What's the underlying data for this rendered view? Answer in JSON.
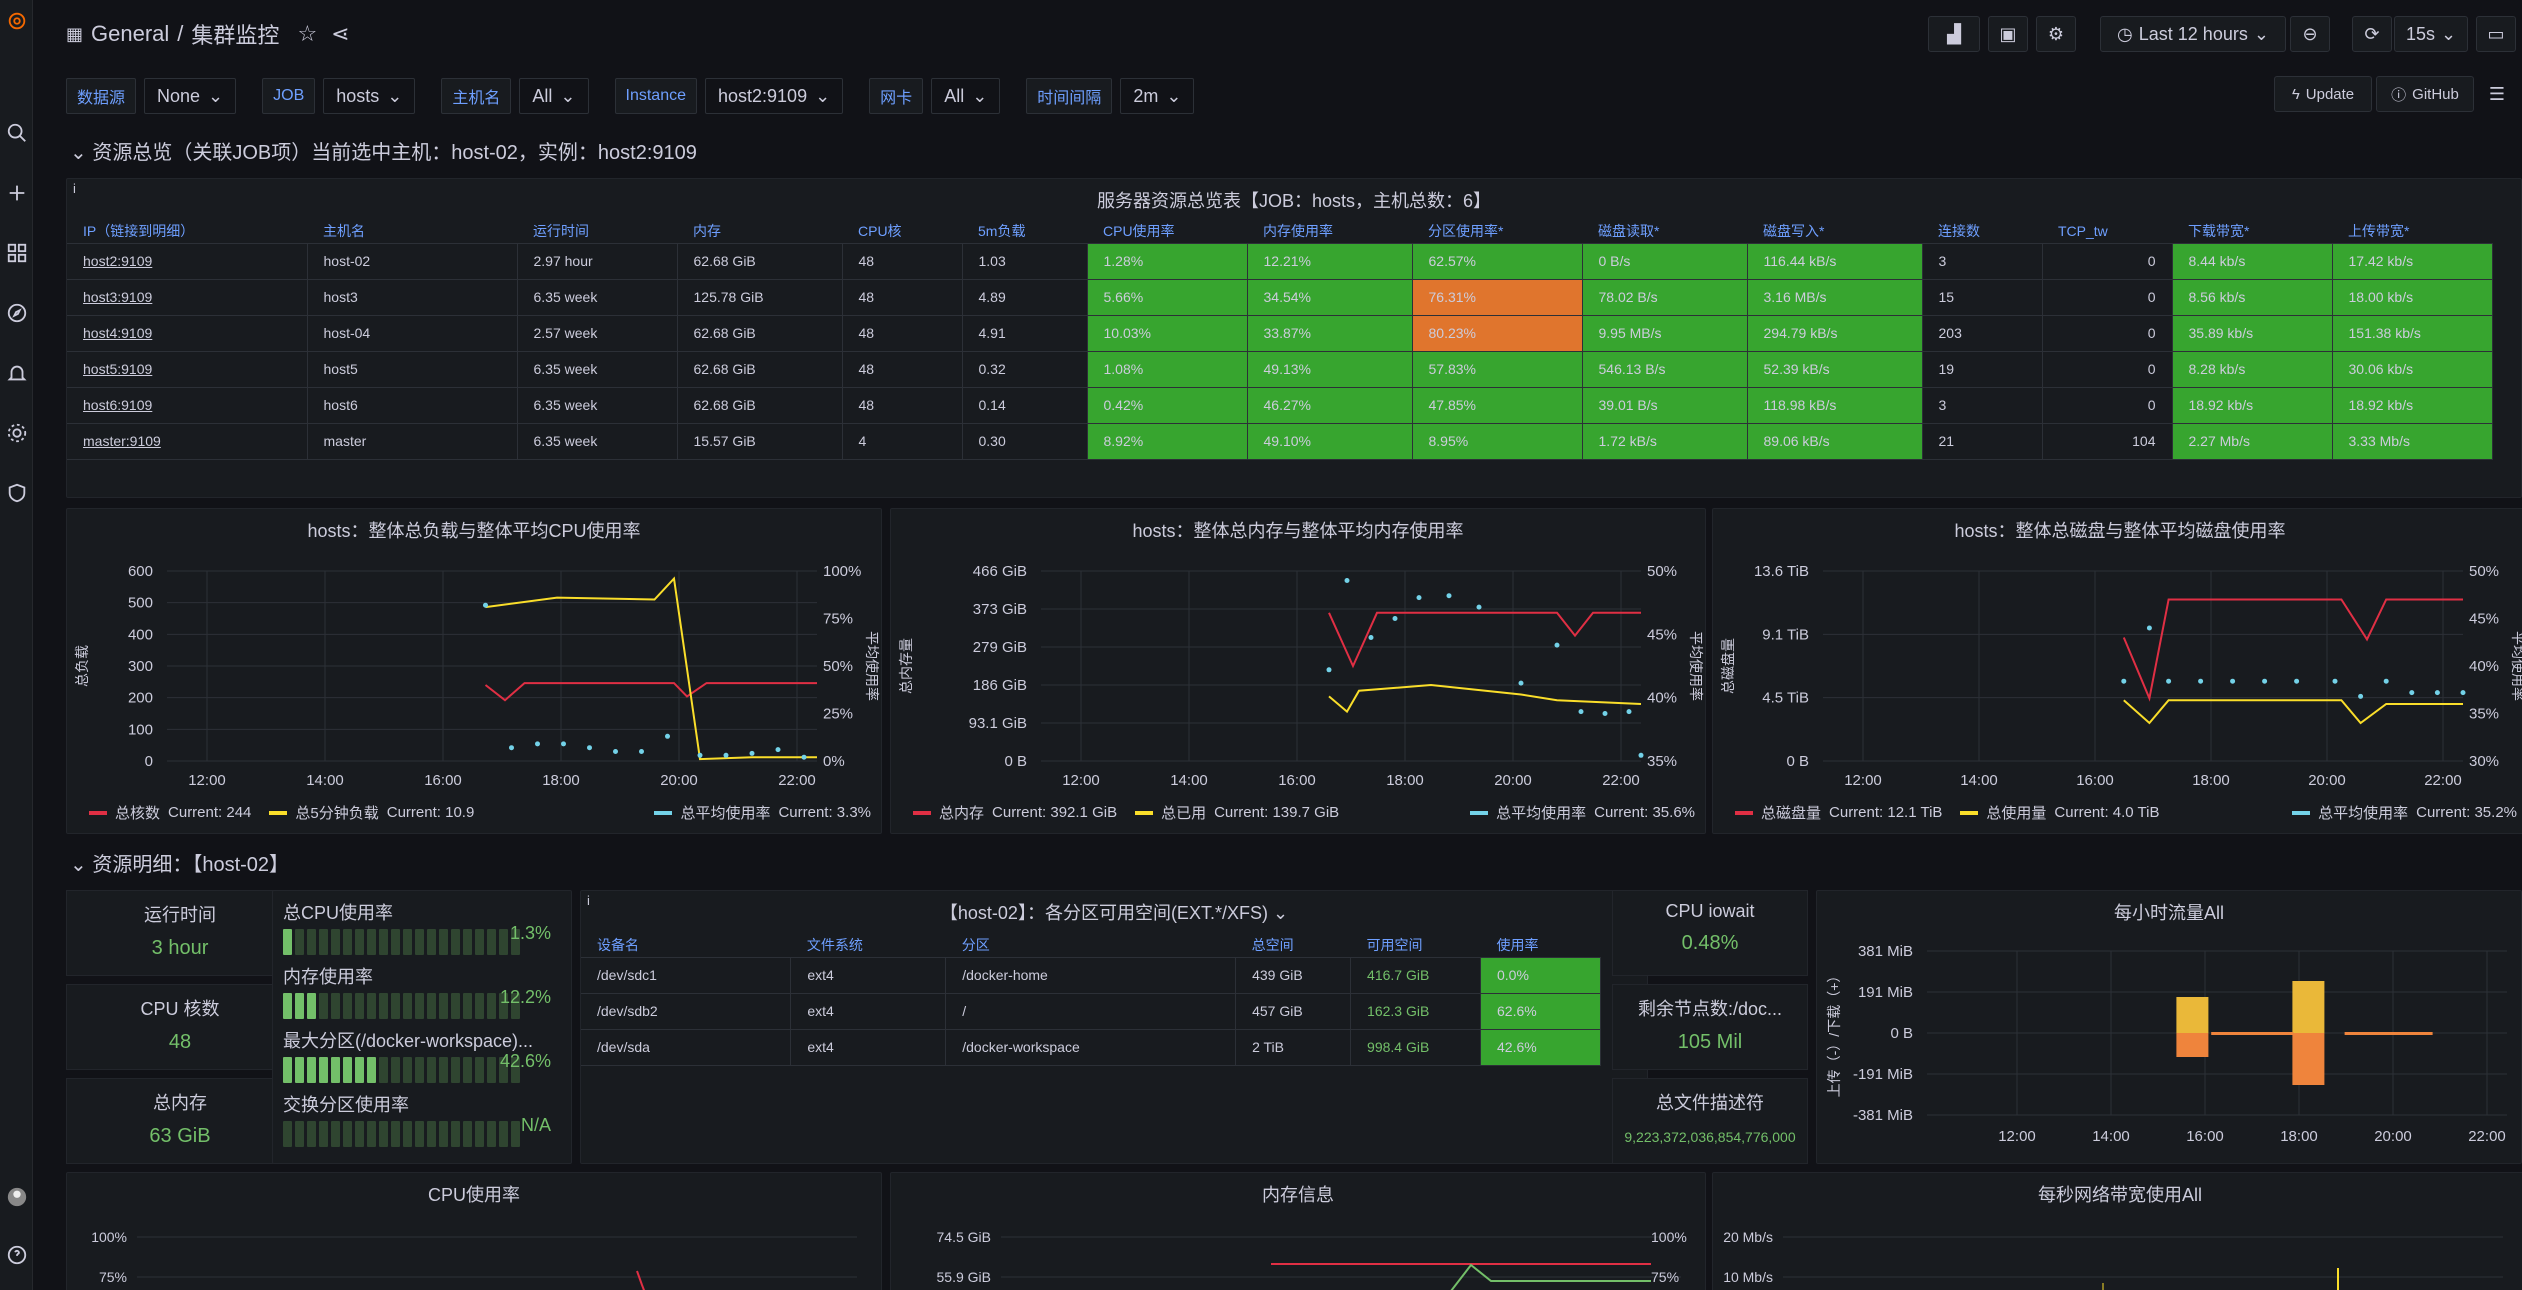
{
  "header": {
    "section": "General",
    "separator": "/",
    "title": "集群监控",
    "time_range": "Last 12 hours",
    "refresh": "15s",
    "update": "Update",
    "github": "GitHub"
  },
  "vars": [
    {
      "label": "数据源",
      "value": "None"
    },
    {
      "label": "JOB",
      "value": "hosts"
    },
    {
      "label": "主机名",
      "value": "All"
    },
    {
      "label": "Instance",
      "value": "host2:9109"
    },
    {
      "label": "网卡",
      "value": "All"
    },
    {
      "label": "时间间隔",
      "value": "2m"
    }
  ],
  "row1": {
    "title": "资源总览（关联JOB项）当前选中主机：host-02，实例：host2:9109"
  },
  "overview": {
    "title": "服务器资源总览表【JOB：hosts，主机总数：6】",
    "info": "i",
    "columns": [
      "IP（链接到明细）",
      "主机名",
      "运行时间",
      "内存",
      "CPU核",
      "5m负载",
      "CPU使用率",
      "内存使用率",
      "分区使用率*",
      "磁盘读取*",
      "磁盘写入*",
      "连接数",
      "TCP_tw",
      "下载带宽*",
      "上传带宽*"
    ],
    "rows": [
      [
        "host2:9109",
        "host-02",
        "2.97 hour",
        "62.68 GiB",
        "48",
        "1.03",
        "1.28%",
        "12.21%",
        "62.57%",
        "0 B/s",
        "116.44 kB/s",
        "3",
        "0",
        "8.44 kb/s",
        "17.42 kb/s"
      ],
      [
        "host3:9109",
        "host3",
        "6.35 week",
        "125.78 GiB",
        "48",
        "4.89",
        "5.66%",
        "34.54%",
        "76.31%",
        "78.02 B/s",
        "3.16 MB/s",
        "15",
        "0",
        "8.56 kb/s",
        "18.00 kb/s"
      ],
      [
        "host4:9109",
        "host-04",
        "2.57 week",
        "62.68 GiB",
        "48",
        "4.91",
        "10.03%",
        "33.87%",
        "80.23%",
        "9.95 MB/s",
        "294.79 kB/s",
        "203",
        "0",
        "35.89 kb/s",
        "151.38 kb/s"
      ],
      [
        "host5:9109",
        "host5",
        "6.35 week",
        "62.68 GiB",
        "48",
        "0.32",
        "1.08%",
        "49.13%",
        "57.83%",
        "546.13 B/s",
        "52.39 kB/s",
        "19",
        "0",
        "8.28 kb/s",
        "30.06 kb/s"
      ],
      [
        "host6:9109",
        "host6",
        "6.35 week",
        "62.68 GiB",
        "48",
        "0.14",
        "0.42%",
        "46.27%",
        "47.85%",
        "39.01 B/s",
        "118.98 kB/s",
        "3",
        "0",
        "18.92 kb/s",
        "18.92 kb/s"
      ],
      [
        "master:9109",
        "master",
        "6.35 week",
        "15.57 GiB",
        "4",
        "0.30",
        "8.92%",
        "49.10%",
        "8.95%",
        "1.72 kB/s",
        "89.06 kB/s",
        "21",
        "104",
        "2.27 Mb/s",
        "3.33 Mb/s"
      ]
    ]
  },
  "charts": [
    {
      "title": "hosts：整体总负载与整体平均CPU使用率",
      "yl": "总负载",
      "yr": "平均使用率",
      "yticks": [
        "600",
        "500",
        "400",
        "300",
        "200",
        "100",
        "0"
      ],
      "rticks": [
        "100%",
        "75%",
        "50%",
        "25%",
        "0%"
      ],
      "legend": [
        {
          "name": "总核数",
          "cur": "Current: 244",
          "color": "#e02f44"
        },
        {
          "name": "总5分钟负载",
          "cur": "Current: 10.9",
          "color": "#fade2a"
        }
      ],
      "legend_r": {
        "name": "总平均使用率",
        "cur": "Current: 3.3%",
        "color": "#73d2e8"
      }
    },
    {
      "title": "hosts：整体总内存与整体平均内存使用率",
      "yl": "总内存量",
      "yr": "平均使用率",
      "yticks": [
        "466 GiB",
        "373 GiB",
        "279 GiB",
        "186 GiB",
        "93.1 GiB",
        "0 B"
      ],
      "rticks": [
        "50%",
        "45%",
        "40%",
        "35%"
      ],
      "legend": [
        {
          "name": "总内存",
          "cur": "Current: 392.1 GiB",
          "color": "#e02f44"
        },
        {
          "name": "总已用",
          "cur": "Current: 139.7 GiB",
          "color": "#fade2a"
        }
      ],
      "legend_r": {
        "name": "总平均使用率",
        "cur": "Current: 35.6%",
        "color": "#73d2e8"
      }
    },
    {
      "title": "hosts：整体总磁盘与整体平均磁盘使用率",
      "yl": "总磁盘量",
      "yr": "平均使用率",
      "yticks": [
        "13.6 TiB",
        "9.1 TiB",
        "4.5 TiB",
        "0 B"
      ],
      "rticks": [
        "50%",
        "45%",
        "40%",
        "35%",
        "30%"
      ],
      "legend": [
        {
          "name": "总磁盘量",
          "cur": "Current: 12.1 TiB",
          "color": "#e02f44"
        },
        {
          "name": "总使用量",
          "cur": "Current: 4.0 TiB",
          "color": "#fade2a"
        }
      ],
      "legend_r": {
        "name": "总平均使用率",
        "cur": "Current: 35.2%",
        "color": "#73d2e8"
      }
    }
  ],
  "xticks": [
    "12:00",
    "14:00",
    "16:00",
    "18:00",
    "20:00",
    "22:00"
  ],
  "row2": {
    "title": "资源明细：【host-02】"
  },
  "stats": {
    "uptime": {
      "t": "运行时间",
      "v": "3 hour"
    },
    "cores": {
      "t": "CPU 核数",
      "v": "48"
    },
    "mem": {
      "t": "总内存",
      "v": "63 GiB"
    },
    "iowait": {
      "t": "CPU iowait",
      "v": "0.48%"
    },
    "nodes": {
      "t": "剩余节点数:/doc...",
      "v": "105 Mil"
    },
    "fd": {
      "t": "总文件描述符",
      "v": "9,223,372,036,854,776,000"
    }
  },
  "gauges": [
    {
      "t": "总CPU使用率",
      "v": "1.3%",
      "n": 1
    },
    {
      "t": "内存使用率",
      "v": "12.2%",
      "n": 3
    },
    {
      "t": "最大分区(/docker-workspace)...",
      "v": "42.6%",
      "n": 8
    },
    {
      "t": "交换分区使用率",
      "v": "N/A",
      "n": 0
    }
  ],
  "parts": {
    "title": "【host-02】：各分区可用空间(EXT.*/XFS)",
    "cols": [
      "设备名",
      "文件系统",
      "分区",
      "总空间",
      "可用空间",
      "使用率"
    ],
    "rows": [
      [
        "/dev/sdc1",
        "ext4",
        "/docker-home",
        "439 GiB",
        "416.7 GiB",
        "0.0%"
      ],
      [
        "/dev/sdb2",
        "ext4",
        "/",
        "457 GiB",
        "162.3 GiB",
        "62.6%"
      ],
      [
        "/dev/sda",
        "ext4",
        "/docker-workspace",
        "2 TiB",
        "998.4 GiB",
        "42.6%"
      ]
    ]
  },
  "traffic": {
    "title": "每小时流量All",
    "yticks": [
      "381 MiB",
      "191 MiB",
      "0 B",
      "-191 MiB",
      "-381 MiB"
    ],
    "ylabel": "上传（-）/下载（+）"
  },
  "bottom": [
    {
      "title": "CPU使用率",
      "ticks": [
        "100%",
        "75%"
      ]
    },
    {
      "title": "内存信息",
      "ticks": [
        "74.5 GiB",
        "55.9 GiB"
      ],
      "rticks": [
        "100%",
        "75%"
      ]
    },
    {
      "title": "每秒网络带宽使用All",
      "ticks": [
        "20 Mb/s",
        "10 Mb/s"
      ]
    }
  ]
}
